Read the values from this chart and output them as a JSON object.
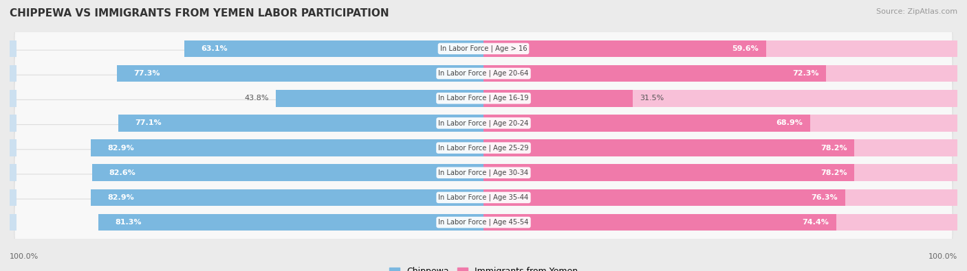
{
  "title": "CHIPPEWA VS IMMIGRANTS FROM YEMEN LABOR PARTICIPATION",
  "source": "Source: ZipAtlas.com",
  "categories": [
    "In Labor Force | Age > 16",
    "In Labor Force | Age 20-64",
    "In Labor Force | Age 16-19",
    "In Labor Force | Age 20-24",
    "In Labor Force | Age 25-29",
    "In Labor Force | Age 30-34",
    "In Labor Force | Age 35-44",
    "In Labor Force | Age 45-54"
  ],
  "chippewa_values": [
    63.1,
    77.3,
    43.8,
    77.1,
    82.9,
    82.6,
    82.9,
    81.3
  ],
  "yemen_values": [
    59.6,
    72.3,
    31.5,
    68.9,
    78.2,
    78.2,
    76.3,
    74.4
  ],
  "chippewa_color": "#7bb8e0",
  "chippewa_color_light": "#cce0f0",
  "yemen_color": "#f07aaa",
  "yemen_color_light": "#f8c0d8",
  "background_color": "#ebebeb",
  "row_bg_color": "#f8f8f8",
  "max_value": 100.0,
  "label_threshold": 50,
  "legend_label_chippewa": "Chippewa",
  "legend_label_yemen": "Immigrants from Yemen",
  "bottom_left_label": "100.0%",
  "bottom_right_label": "100.0%"
}
